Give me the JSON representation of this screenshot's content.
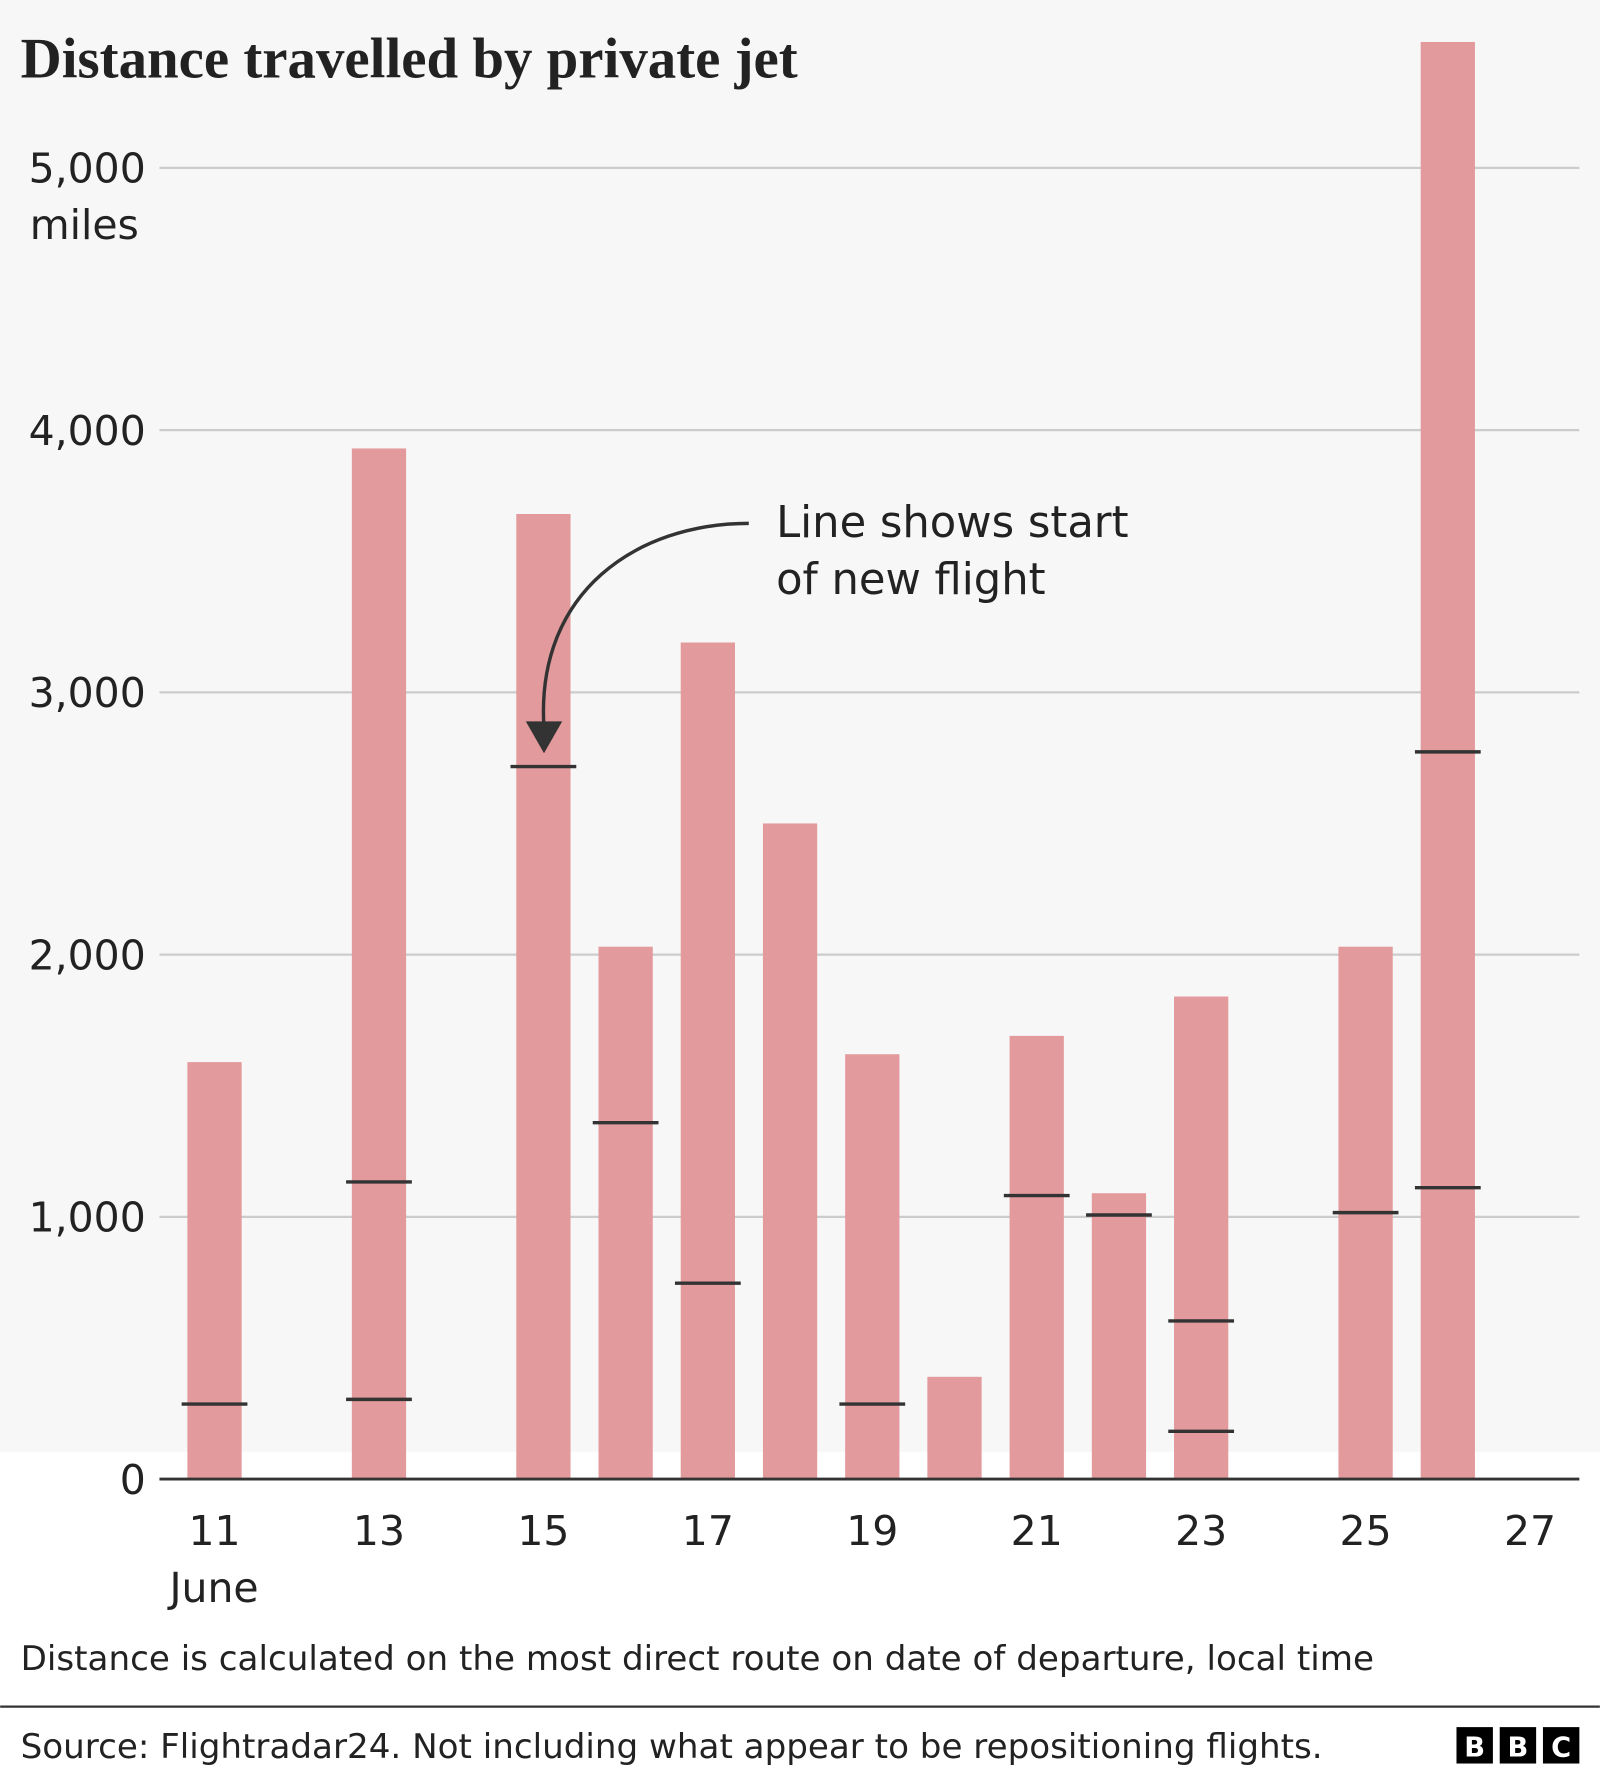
{
  "chart_data": {
    "type": "bar",
    "title": "Distance travelled by private jet",
    "y_unit": "miles",
    "x_sublabel": "June",
    "annotation": [
      "Line shows start",
      "of new flight"
    ],
    "note": "Distance is calculated on the most direct route on date of departure, local time",
    "source": "Source: Flightradar24. Not including what appear to be repositioning flights.",
    "logo": [
      "B",
      "B",
      "C"
    ],
    "x": [
      11,
      13,
      15,
      16,
      17,
      18,
      19,
      20,
      21,
      22,
      23,
      25,
      26
    ],
    "values": [
      1590,
      3930,
      3680,
      2030,
      3190,
      2500,
      1620,
      390,
      1690,
      1090,
      1840,
      2030,
      5480
    ],
    "flight_starts": [
      [
        286
      ],
      [
        1133,
        304
      ],
      [
        2717
      ],
      [
        1359
      ],
      [
        747
      ],
      [],
      [
        286
      ],
      [],
      [
        1081
      ],
      [
        1007
      ],
      [
        603,
        182
      ],
      [
        1016
      ],
      [
        2773,
        1111
      ]
    ],
    "color": "#e39a9c",
    "flight_line_color": "#333333",
    "xlim": [
      10.33,
      27.6
    ],
    "xticks": [
      11,
      13,
      15,
      17,
      19,
      21,
      23,
      25,
      27
    ],
    "ylim": [
      0,
      5640
    ],
    "yticks": [
      0,
      {
        "value": 1000,
        "label": "1,000"
      },
      {
        "value": 2000,
        "label": "2,000"
      },
      {
        "value": 3000,
        "label": "3,000"
      },
      {
        "value": 4000,
        "label": "4,000"
      },
      {
        "value": 5000,
        "label": "5,000"
      }
    ],
    "grid": true
  }
}
